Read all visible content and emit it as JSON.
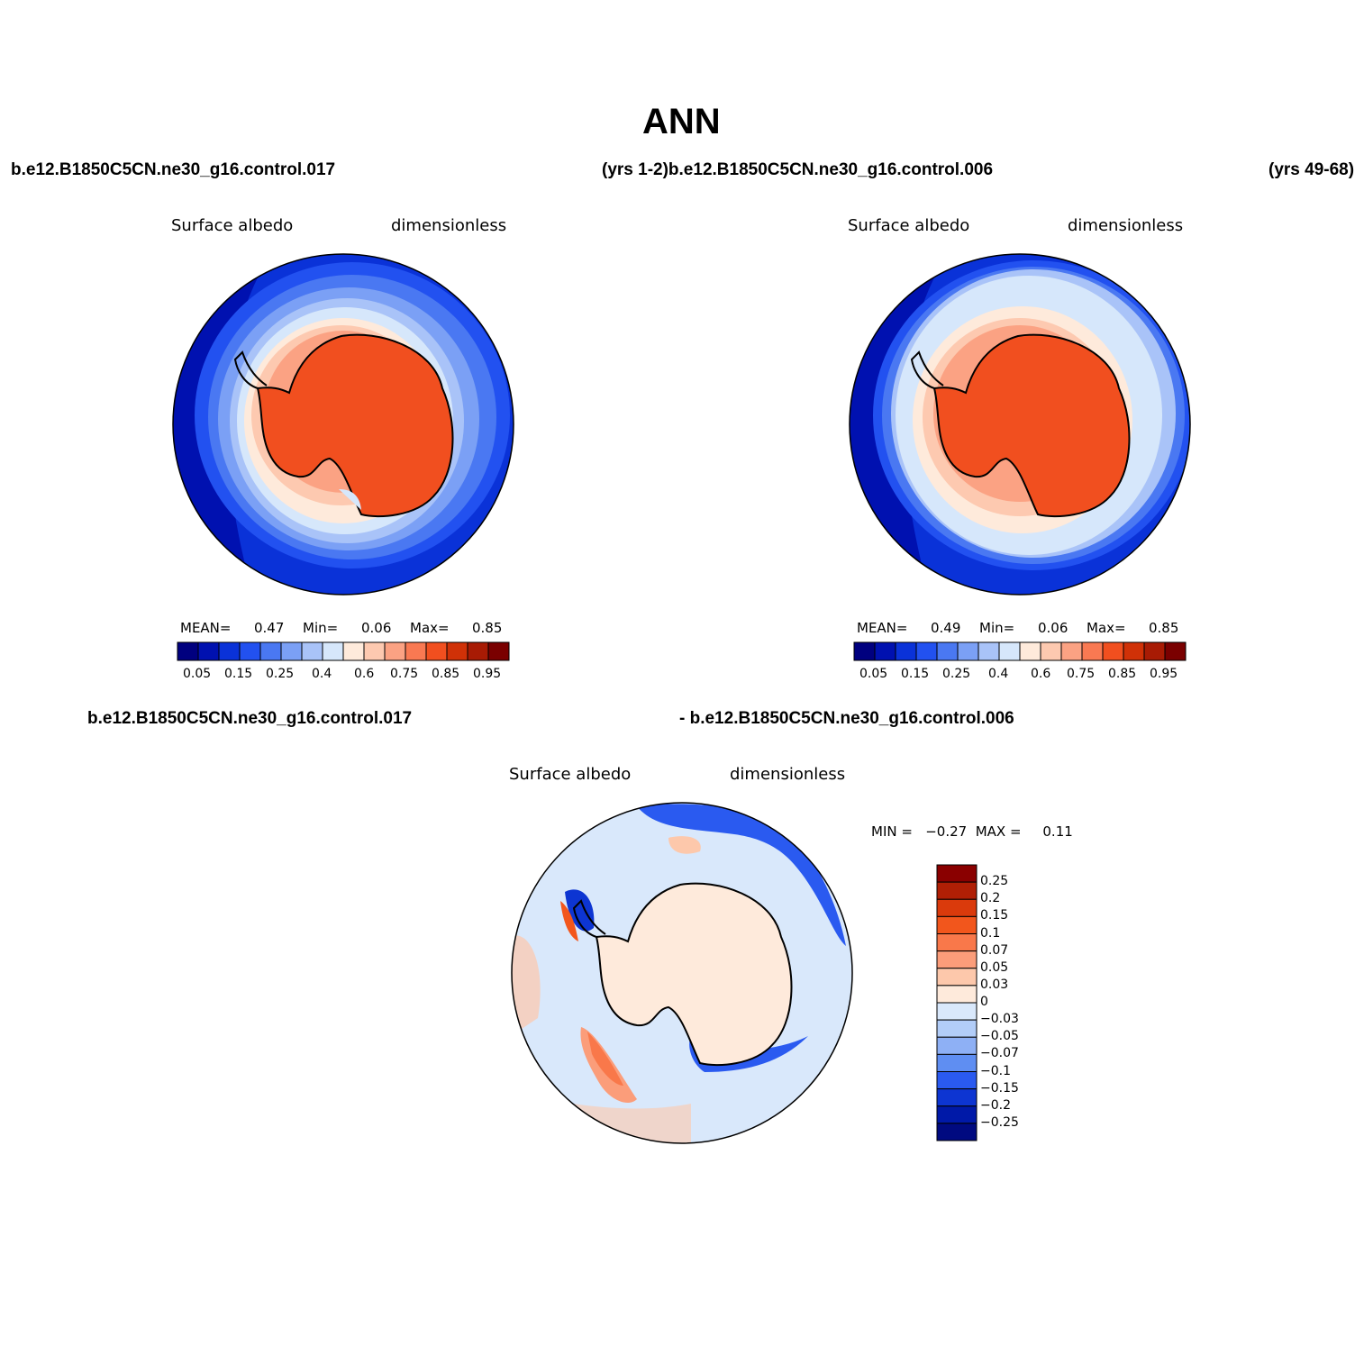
{
  "title": "ANN",
  "header": {
    "case_left": "b.e12.B1850C5CN.ne30_g16.control.017",
    "case_mid": "(yrs 1-2)b.e12.B1850C5CN.ne30_g16.control.006",
    "case_right": "(yrs 49-68)",
    "diff_left": "b.e12.B1850C5CN.ne30_g16.control.017",
    "diff_mid": "- b.e12.B1850C5CN.ne30_g16.control.006"
  },
  "panels": [
    {
      "variable": "Surface albedo",
      "units": "dimensionless",
      "stats": {
        "mean_label": "MEAN=",
        "mean": "0.47",
        "min_label": "Min=",
        "min": "0.06",
        "max_label": "Max=",
        "max": "0.85"
      }
    },
    {
      "variable": "Surface albedo",
      "units": "dimensionless",
      "stats": {
        "mean_label": "MEAN=",
        "mean": "0.49",
        "min_label": "Min=",
        "min": "0.06",
        "max_label": "Max=",
        "max": "0.85"
      }
    }
  ],
  "abs_colorbar": {
    "colors": [
      "#00007f",
      "#0011b0",
      "#0a32d8",
      "#2251f0",
      "#4a78f2",
      "#7ba0f5",
      "#a9c3f8",
      "#d6e7fb",
      "#feeadb",
      "#fdc9b0",
      "#fba283",
      "#f97952",
      "#f14f1f",
      "#d03107",
      "#a81b04",
      "#7a0000"
    ],
    "tick_labels": [
      "0.05",
      "0.15",
      "0.25",
      "0.4",
      "0.6",
      "0.75",
      "0.85",
      "0.95"
    ]
  },
  "diff_panel": {
    "variable": "Surface albedo",
    "units": "dimensionless",
    "minmax_text": "MIN =   −0.27  MAX =     0.11"
  },
  "diff_colorbar": {
    "colors_top_to_bottom": [
      "#8a0000",
      "#b01f05",
      "#da3a0c",
      "#f2561c",
      "#f9784a",
      "#fb9d7a",
      "#fdc8ab",
      "#feeadb",
      "#d9e8fb",
      "#b2cdf8",
      "#8eb0f5",
      "#5f8ef2",
      "#2a5af0",
      "#0d35d2",
      "#0019a8",
      "#000a80"
    ],
    "tick_labels": [
      "0.25",
      "0.2",
      "0.15",
      "0.1",
      "0.07",
      "0.05",
      "0.03",
      "0",
      "−0.03",
      "−0.05",
      "−0.07",
      "−0.1",
      "−0.15",
      "−0.2",
      "−0.25"
    ]
  }
}
